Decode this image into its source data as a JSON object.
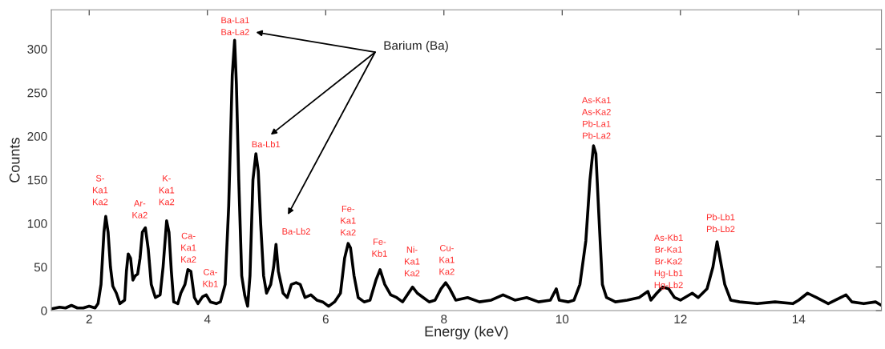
{
  "chart_data": {
    "type": "line",
    "xlabel": "Energy (keV)",
    "ylabel": "Counts",
    "xlim": [
      1.36,
      15.4
    ],
    "ylim": [
      0,
      345
    ],
    "xticks": [
      2,
      4,
      6,
      8,
      10,
      12,
      14
    ],
    "yticks": [
      0,
      50,
      100,
      150,
      200,
      250,
      300
    ],
    "grid": false,
    "marker": "none",
    "line_style": "solid",
    "series": [
      {
        "color": "#000000",
        "x": [
          1.37,
          1.5,
          1.6,
          1.7,
          1.8,
          1.9,
          2.0,
          2.1,
          2.15,
          2.2,
          2.25,
          2.28,
          2.32,
          2.36,
          2.4,
          2.46,
          2.52,
          2.6,
          2.63,
          2.66,
          2.7,
          2.74,
          2.78,
          2.82,
          2.86,
          2.9,
          2.95,
          3.0,
          3.05,
          3.12,
          3.2,
          3.25,
          3.31,
          3.35,
          3.39,
          3.43,
          3.5,
          3.55,
          3.62,
          3.67,
          3.72,
          3.78,
          3.84,
          3.92,
          3.98,
          4.05,
          4.15,
          4.22,
          4.3,
          4.36,
          4.42,
          4.46,
          4.49,
          4.53,
          4.58,
          4.63,
          4.68,
          4.72,
          4.77,
          4.82,
          4.86,
          4.9,
          4.95,
          5.0,
          5.07,
          5.12,
          5.16,
          5.2,
          5.28,
          5.35,
          5.42,
          5.5,
          5.57,
          5.65,
          5.75,
          5.85,
          5.95,
          6.05,
          6.15,
          6.25,
          6.32,
          6.38,
          6.42,
          6.48,
          6.55,
          6.65,
          6.75,
          6.85,
          6.92,
          7.0,
          7.1,
          7.2,
          7.3,
          7.4,
          7.47,
          7.55,
          7.65,
          7.75,
          7.85,
          7.95,
          8.03,
          8.1,
          8.2,
          8.4,
          8.6,
          8.8,
          9.0,
          9.2,
          9.4,
          9.6,
          9.8,
          9.9,
          9.95,
          10.1,
          10.2,
          10.3,
          10.4,
          10.47,
          10.53,
          10.57,
          10.62,
          10.68,
          10.75,
          10.9,
          11.1,
          11.3,
          11.45,
          11.5,
          11.6,
          11.7,
          11.8,
          11.9,
          12.0,
          12.2,
          12.3,
          12.45,
          12.55,
          12.62,
          12.67,
          12.75,
          12.85,
          13.0,
          13.3,
          13.6,
          13.9,
          14.0,
          14.15,
          14.3,
          14.5,
          14.8,
          14.9,
          15.1,
          15.3,
          15.4
        ],
        "values": [
          2,
          4,
          3,
          6,
          3,
          3,
          5,
          3,
          8,
          30,
          90,
          108,
          90,
          50,
          28,
          20,
          8,
          12,
          45,
          65,
          60,
          35,
          40,
          42,
          60,
          90,
          95,
          70,
          30,
          15,
          18,
          50,
          103,
          90,
          45,
          10,
          8,
          20,
          30,
          47,
          45,
          15,
          8,
          16,
          18,
          10,
          8,
          10,
          30,
          120,
          270,
          310,
          260,
          150,
          40,
          18,
          5,
          40,
          150,
          180,
          160,
          100,
          40,
          20,
          30,
          50,
          76,
          45,
          20,
          15,
          30,
          32,
          30,
          15,
          18,
          12,
          10,
          5,
          10,
          20,
          60,
          77,
          72,
          40,
          15,
          10,
          12,
          35,
          47,
          30,
          18,
          15,
          10,
          20,
          27,
          20,
          15,
          10,
          12,
          25,
          32,
          25,
          12,
          15,
          10,
          12,
          18,
          12,
          15,
          10,
          12,
          25,
          12,
          10,
          12,
          30,
          80,
          150,
          189,
          180,
          110,
          30,
          15,
          10,
          12,
          15,
          22,
          12,
          20,
          27,
          25,
          15,
          12,
          20,
          15,
          25,
          50,
          79,
          60,
          30,
          12,
          10,
          8,
          10,
          8,
          12,
          20,
          15,
          8,
          18,
          10,
          8,
          10,
          6
        ]
      }
    ],
    "annotations": [
      {
        "text": "S-\nKa1\nKa2",
        "x": 2.28,
        "y": 108
      },
      {
        "text": "Ar-\nKa2",
        "x": 2.95,
        "y": 95
      },
      {
        "text": "K-\nKa1\nKa2",
        "x": 3.31,
        "y": 103
      },
      {
        "text": "Ca-\nKa1\nKa2",
        "x": 3.67,
        "y": 47
      },
      {
        "text": "Ca-\nKb1",
        "x": 3.98,
        "y": 18
      },
      {
        "text": "Ba-La1\nBa-La2",
        "x": 4.46,
        "y": 310
      },
      {
        "text": "Ba-Lb1",
        "x": 4.82,
        "y": 180
      },
      "Ba-Lb2",
      {
        "text": "Fe-\nKa1\nKa2",
        "x": 6.38,
        "y": 77
      },
      {
        "text": "Fe-\nKb1",
        "x": 6.92,
        "y": 47
      },
      {
        "text": "Ni-\nKa1\nKa2",
        "x": 7.47,
        "y": 27
      },
      {
        "text": "Cu-\nKa1\nKa2",
        "x": 8.03,
        "y": 32
      },
      {
        "text": "As-Ka1\nAs-Ka2\nPb-La1\nPb-La2",
        "x": 10.53,
        "y": 189
      },
      {
        "text": "As-Kb1\nBr-Ka1\nBr-Ka2\nHg-Lb1\nHg-Lb2",
        "x": 11.8,
        "y": 25
      },
      {
        "text": "Pb-Lb1\nPb-Lb2",
        "x": 12.62,
        "y": 79
      },
      "Barium (Ba)"
    ]
  }
}
